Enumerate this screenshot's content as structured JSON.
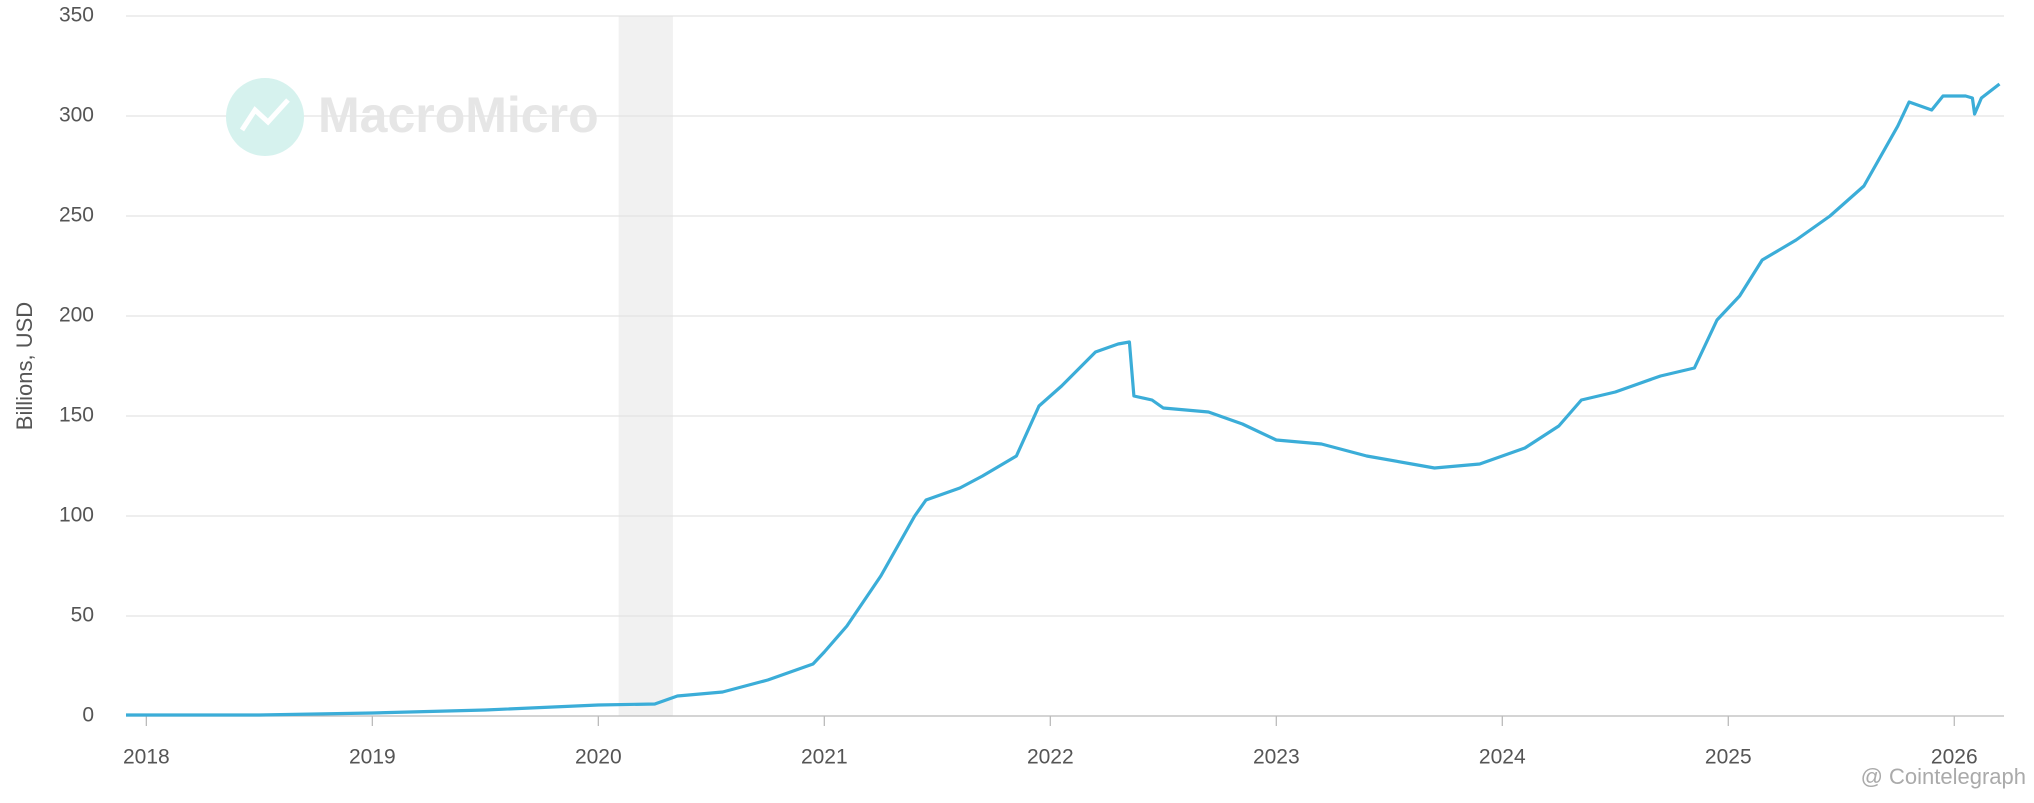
{
  "chart_data": {
    "type": "line",
    "y_label": "Billions, USD",
    "watermark": "MacroMicro",
    "source": "@ Cointelegraph",
    "xlim": [
      2017.91,
      2026.22
    ],
    "xticks": [
      2018,
      2019,
      2020,
      2021,
      2022,
      2023,
      2024,
      2025,
      2026
    ],
    "ylim": [
      0,
      350
    ],
    "yticks": [
      0,
      50,
      100,
      150,
      200,
      250,
      300,
      350
    ],
    "grid": true,
    "shaded_region": [
      2020.09,
      2020.33
    ],
    "series": [
      {
        "color": "#3badd8",
        "x": [
          2017.91,
          2018.5,
          2019.0,
          2019.5,
          2020.0,
          2020.25,
          2020.35,
          2020.55,
          2020.75,
          2020.95,
          2021.0,
          2021.1,
          2021.25,
          2021.4,
          2021.45,
          2021.6,
          2021.7,
          2021.85,
          2021.95,
          2022.05,
          2022.2,
          2022.3,
          2022.35,
          2022.37,
          2022.45,
          2022.5,
          2022.7,
          2022.85,
          2023.0,
          2023.2,
          2023.4,
          2023.6,
          2023.7,
          2023.9,
          2024.1,
          2024.25,
          2024.35,
          2024.5,
          2024.7,
          2024.85,
          2024.95,
          2025.05,
          2025.15,
          2025.3,
          2025.45,
          2025.6,
          2025.75,
          2025.8,
          2025.9,
          2025.95,
          2026.05,
          2026.08,
          2026.09,
          2026.12,
          2026.2
        ],
        "values": [
          0.5,
          0.5,
          1.5,
          3,
          5.5,
          6,
          10,
          12,
          18,
          26,
          32,
          45,
          70,
          100,
          108,
          114,
          120,
          130,
          155,
          165,
          182,
          186,
          187,
          160,
          158,
          154,
          152,
          146,
          138,
          136,
          130,
          126,
          124,
          126,
          134,
          145,
          158,
          162,
          170,
          174,
          198,
          210,
          228,
          238,
          250,
          265,
          295,
          307,
          303,
          310,
          310,
          309,
          301,
          309,
          316
        ]
      }
    ]
  }
}
